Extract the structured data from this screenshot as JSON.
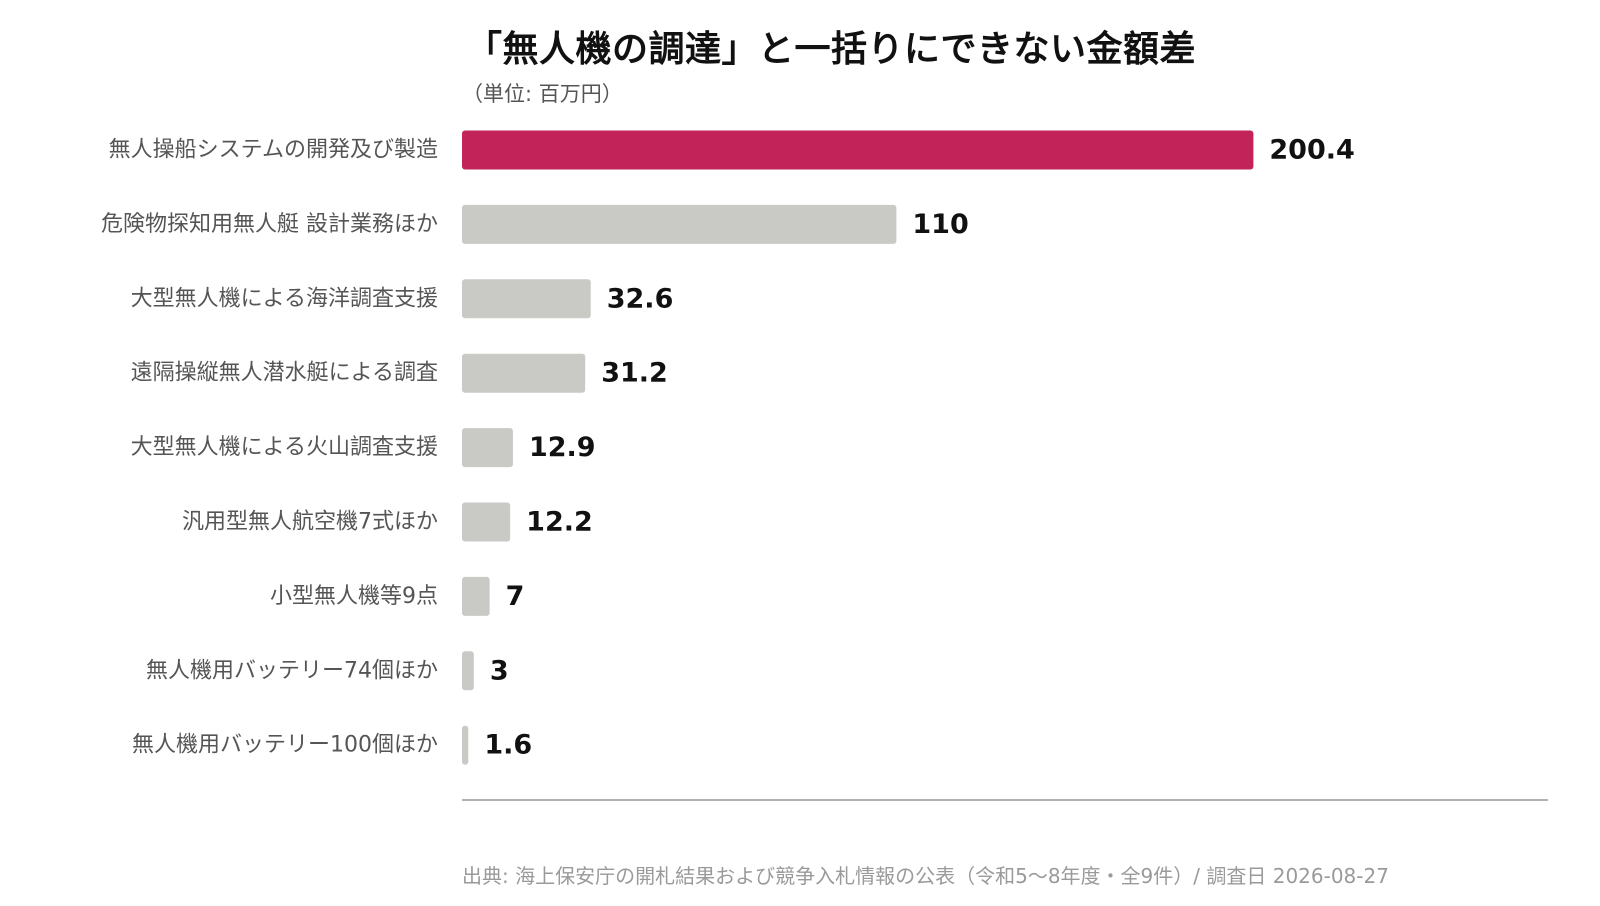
{
  "chart_data": {
    "type": "bar",
    "orientation": "horizontal",
    "title": "「無人機の調達」と一括りにできない金額差",
    "subtitle": "（単位: 百万円）",
    "categories": [
      "無人操船システムの開発及び製造",
      "危険物探知用無人艇 設計業務ほか",
      "大型無人機による海洋調査支援",
      "遠隔操縦無人潜水艇による調査",
      "大型無人機による火山調査支援",
      "汎用型無人航空機7式ほか",
      "小型無人機等9点",
      "無人機用バッテリー74個ほか",
      "無人機用バッテリー100個ほか"
    ],
    "values": [
      200.4,
      110,
      32.6,
      31.2,
      12.9,
      12.2,
      7,
      3,
      1.6
    ],
    "value_labels": [
      "200.4",
      "110",
      "32.6",
      "31.2",
      "12.9",
      "12.2",
      "7",
      "3",
      "1.6"
    ],
    "xlim": [
      0,
      275
    ],
    "grid": false,
    "highlight_index": 0,
    "colors": {
      "highlight": "#c2245a",
      "default": "#c9c9c5",
      "baseline": "#999999"
    },
    "source": "出典: 海上保安庁の開札結果および競争入札情報の公表（令和5〜8年度・全9件）/ 調査日 2026-08-27"
  }
}
